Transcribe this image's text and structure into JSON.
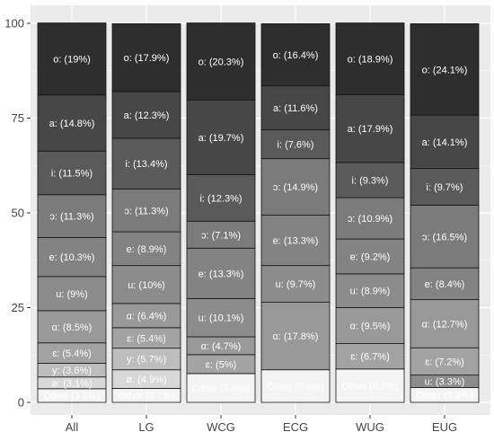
{
  "chart_data": {
    "type": "bar",
    "stacked": true,
    "ylim": [
      0,
      100
    ],
    "yticks": [
      0,
      25,
      50,
      75,
      100
    ],
    "grid": true,
    "legend": "none",
    "title": "",
    "xlabel": "",
    "ylabel": "",
    "categories": [
      "All",
      "LG",
      "WCG",
      "ECG",
      "WUG",
      "EUG"
    ],
    "bars": [
      {
        "category": "All",
        "segments": [
          {
            "key": "Other",
            "value": 3.6,
            "label": "Other (3.6%)",
            "color": "#f4f4f4"
          },
          {
            "key": "ø",
            "value": 3.1,
            "label": "ø: (3.1%)",
            "color": "#d8d8d8"
          },
          {
            "key": "y",
            "value": 3.6,
            "label": "y: (3.6%)",
            "color": "#bdbdbd"
          },
          {
            "key": "ɛ",
            "value": 5.4,
            "label": "ɛ: (5.4%)",
            "color": "#a3a3a3"
          },
          {
            "key": "ɑ",
            "value": 8.5,
            "label": "ɑ: (8.5%)",
            "color": "#999999"
          },
          {
            "key": "u",
            "value": 9.0,
            "label": "u: (9%)",
            "color": "#8c8c8c"
          },
          {
            "key": "e",
            "value": 10.3,
            "label": "e: (10.3%)",
            "color": "#838383"
          },
          {
            "key": "ɔ",
            "value": 11.3,
            "label": "ɔ: (11.3%)",
            "color": "#7b7b7b"
          },
          {
            "key": "i",
            "value": 11.5,
            "label": "i: (11.5%)",
            "color": "#5a5a5a"
          },
          {
            "key": "a",
            "value": 14.8,
            "label": "a: (14.8%)",
            "color": "#474747"
          },
          {
            "key": "o",
            "value": 19.0,
            "label": "o: (19%)",
            "color": "#2e2e2e"
          }
        ]
      },
      {
        "category": "LG",
        "segments": [
          {
            "key": "Other",
            "value": 3.7,
            "label": "Other (3.7%)",
            "color": "#f4f4f4"
          },
          {
            "key": "ø",
            "value": 4.9,
            "label": "ø: (4.9%)",
            "color": "#d8d8d8"
          },
          {
            "key": "y",
            "value": 5.7,
            "label": "y: (5.7%)",
            "color": "#bdbdbd"
          },
          {
            "key": "ɛ",
            "value": 5.4,
            "label": "ɛ: (5.4%)",
            "color": "#a3a3a3"
          },
          {
            "key": "ɑ",
            "value": 6.4,
            "label": "ɑ: (6.4%)",
            "color": "#999999"
          },
          {
            "key": "u",
            "value": 10.0,
            "label": "u: (10%)",
            "color": "#8c8c8c"
          },
          {
            "key": "e",
            "value": 8.9,
            "label": "e: (8.9%)",
            "color": "#838383"
          },
          {
            "key": "ɔ",
            "value": 11.3,
            "label": "ɔ: (11.3%)",
            "color": "#7b7b7b"
          },
          {
            "key": "i",
            "value": 13.4,
            "label": "i: (13.4%)",
            "color": "#5a5a5a"
          },
          {
            "key": "a",
            "value": 12.3,
            "label": "a: (12.3%)",
            "color": "#474747"
          },
          {
            "key": "o",
            "value": 17.9,
            "label": "o: (17.9%)",
            "color": "#2e2e2e"
          }
        ]
      },
      {
        "category": "WCG",
        "segments": [
          {
            "key": "Other",
            "value": 7.6,
            "label": "Other (7.6%)",
            "color": "#f4f4f4"
          },
          {
            "key": "ɛ",
            "value": 5.0,
            "label": "ɛ: (5%)",
            "color": "#a3a3a3"
          },
          {
            "key": "ɑ",
            "value": 4.7,
            "label": "ɑ: (4.7%)",
            "color": "#999999"
          },
          {
            "key": "u",
            "value": 10.1,
            "label": "u: (10.1%)",
            "color": "#8c8c8c"
          },
          {
            "key": "e",
            "value": 13.3,
            "label": "e: (13.3%)",
            "color": "#838383"
          },
          {
            "key": "ɔ",
            "value": 7.1,
            "label": "ɔ: (7.1%)",
            "color": "#7b7b7b"
          },
          {
            "key": "i",
            "value": 12.3,
            "label": "i: (12.3%)",
            "color": "#5a5a5a"
          },
          {
            "key": "a",
            "value": 19.7,
            "label": "a: (19.7%)",
            "color": "#474747"
          },
          {
            "key": "o",
            "value": 20.3,
            "label": "o: (20.3%)",
            "color": "#2e2e2e"
          }
        ]
      },
      {
        "category": "ECG",
        "segments": [
          {
            "key": "Other",
            "value": 8.6,
            "label": "Other (8.6%)",
            "color": "#f4f4f4"
          },
          {
            "key": "ɑ",
            "value": 17.8,
            "label": "ɑ: (17.8%)",
            "color": "#999999"
          },
          {
            "key": "u",
            "value": 9.7,
            "label": "u: (9.7%)",
            "color": "#8c8c8c"
          },
          {
            "key": "e",
            "value": 13.3,
            "label": "e: (13.3%)",
            "color": "#838383"
          },
          {
            "key": "ɔ",
            "value": 14.9,
            "label": "ɔ: (14.9%)",
            "color": "#7b7b7b"
          },
          {
            "key": "i",
            "value": 7.6,
            "label": "i: (7.6%)",
            "color": "#5a5a5a"
          },
          {
            "key": "a",
            "value": 11.6,
            "label": "a: (11.6%)",
            "color": "#474747"
          },
          {
            "key": "o",
            "value": 16.4,
            "label": "o: (16.4%)",
            "color": "#2e2e2e"
          }
        ]
      },
      {
        "category": "WUG",
        "segments": [
          {
            "key": "Other",
            "value": 8.8,
            "label": "Other (8.8%)",
            "color": "#f4f4f4"
          },
          {
            "key": "ɛ",
            "value": 6.7,
            "label": "ɛ: (6.7%)",
            "color": "#a3a3a3"
          },
          {
            "key": "ɑ",
            "value": 9.5,
            "label": "ɑ: (9.5%)",
            "color": "#999999"
          },
          {
            "key": "u",
            "value": 8.9,
            "label": "u: (8.9%)",
            "color": "#8c8c8c"
          },
          {
            "key": "e",
            "value": 9.2,
            "label": "e: (9.2%)",
            "color": "#838383"
          },
          {
            "key": "ɔ",
            "value": 10.9,
            "label": "ɔ: (10.9%)",
            "color": "#7b7b7b"
          },
          {
            "key": "i",
            "value": 9.3,
            "label": "i: (9.3%)",
            "color": "#5a5a5a"
          },
          {
            "key": "a",
            "value": 17.9,
            "label": "a: (17.9%)",
            "color": "#474747"
          },
          {
            "key": "o",
            "value": 18.9,
            "label": "o: (18.9%)",
            "color": "#2e2e2e"
          }
        ]
      },
      {
        "category": "EUG",
        "segments": [
          {
            "key": "Other",
            "value": 3.9,
            "label": "Other (3.9%)",
            "color": "#f4f4f4"
          },
          {
            "key": "u",
            "value": 3.3,
            "label": "u: (3.3%)",
            "color": "#8c8c8c"
          },
          {
            "key": "ɛ",
            "value": 7.2,
            "label": "ɛ: (7.2%)",
            "color": "#a3a3a3"
          },
          {
            "key": "ɑ",
            "value": 12.7,
            "label": "ɑ: (12.7%)",
            "color": "#999999"
          },
          {
            "key": "e",
            "value": 8.4,
            "label": "e: (8.4%)",
            "color": "#838383"
          },
          {
            "key": "ɔ",
            "value": 16.5,
            "label": "ɔ: (16.5%)",
            "color": "#7b7b7b"
          },
          {
            "key": "i",
            "value": 9.7,
            "label": "i: (9.7%)",
            "color": "#5a5a5a"
          },
          {
            "key": "a",
            "value": 14.1,
            "label": "a: (14.1%)",
            "color": "#474747"
          },
          {
            "key": "o",
            "value": 24.1,
            "label": "o: (24.1%)",
            "color": "#2e2e2e"
          }
        ]
      }
    ],
    "colors": {
      "panel_background": "#ebebeb",
      "grid": "#ffffff",
      "bar_outline": "#111111",
      "tick_text": "#444444",
      "label_on_dark": "#ffffff",
      "label_on_light": "#ffffff"
    }
  }
}
